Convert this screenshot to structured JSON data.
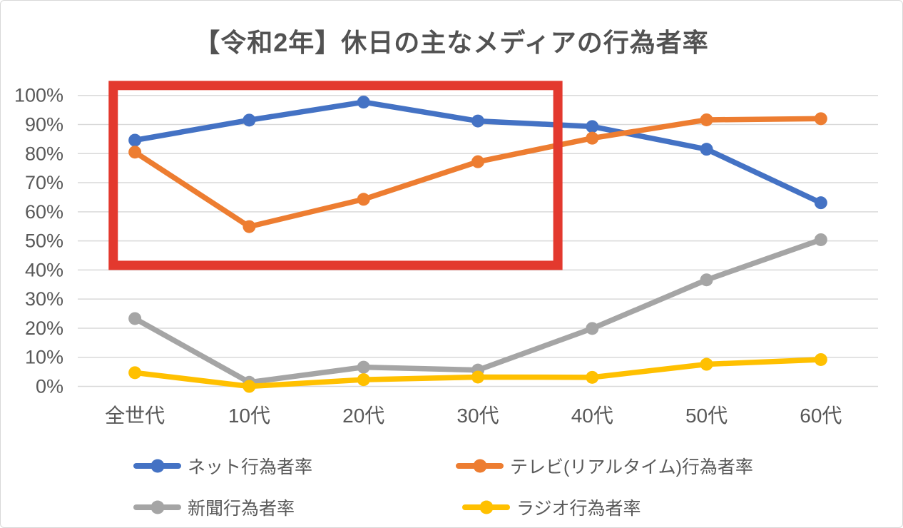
{
  "title": "【令和2年】休日の主なメディアの行為者率",
  "chart_data": {
    "type": "line",
    "categories": [
      "全世代",
      "10代",
      "20代",
      "30代",
      "40代",
      "50代",
      "60代"
    ],
    "series": [
      {
        "name": "ネット行為者率",
        "color": "#4472C4",
        "values": [
          84.6,
          91.5,
          97.7,
          91.2,
          89.3,
          81.5,
          63.1
        ]
      },
      {
        "name": "テレビ(リアルタイム)行為者率",
        "color": "#ED7D31",
        "values": [
          80.5,
          54.9,
          64.3,
          77.2,
          85.3,
          91.6,
          92.0
        ]
      },
      {
        "name": "新聞行為者率",
        "color": "#A5A5A5",
        "values": [
          23.3,
          1.4,
          6.6,
          5.6,
          19.9,
          36.6,
          50.4
        ]
      },
      {
        "name": "ラジオ行為者率",
        "color": "#FFC000",
        "values": [
          4.7,
          0.0,
          2.3,
          3.2,
          3.1,
          7.6,
          9.2
        ]
      }
    ],
    "y_axis": {
      "min": 0,
      "max": 100,
      "step": 10,
      "tick_suffix": "%",
      "tick_labels": [
        "0%",
        "10%",
        "20%",
        "30%",
        "40%",
        "50%",
        "60%",
        "70%",
        "80%",
        "90%",
        "100%"
      ]
    },
    "grid": true,
    "legend_position": "bottom",
    "annotation": {
      "type": "highlight-box",
      "color": "#E3392E",
      "x_units": "category-index",
      "x_range": [
        0.27,
        4.24
      ],
      "y_range": [
        40,
        105
      ],
      "note": "red rectangle highlighting 10代–40代 region between 40% and ~105%"
    },
    "style": {
      "gridline_color": "#D9D9D9",
      "axis_label_color": "#595959",
      "line_width": 7.5,
      "marker_radius": 9
    }
  }
}
